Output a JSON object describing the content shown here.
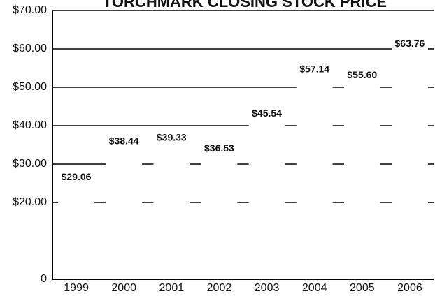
{
  "chart_data": {
    "type": "bar",
    "title": "TORCHMARK CLOSING STOCK PRICE",
    "categories": [
      "1999",
      "2000",
      "2001",
      "2002",
      "2003",
      "2004",
      "2005",
      "2006"
    ],
    "values": [
      29.06,
      38.44,
      39.33,
      36.53,
      45.54,
      57.14,
      55.6,
      63.76
    ],
    "value_labels": [
      "$29.06",
      "$38.44",
      "$39.33",
      "$36.53",
      "$45.54",
      "$57.14",
      "$55.60",
      "$63.76"
    ],
    "color": "#ffffff",
    "ylim": [
      0,
      70
    ],
    "yticks": [
      0,
      {
        "value": 20,
        "label": "$20.00"
      },
      {
        "value": 30,
        "label": "$30.00"
      },
      {
        "value": 40,
        "label": "$40.00"
      },
      {
        "value": 50,
        "label": "$50.00"
      },
      {
        "value": 60,
        "label": "$60.00"
      },
      {
        "value": 70,
        "label": "$70.00"
      }
    ],
    "grid": true
  }
}
